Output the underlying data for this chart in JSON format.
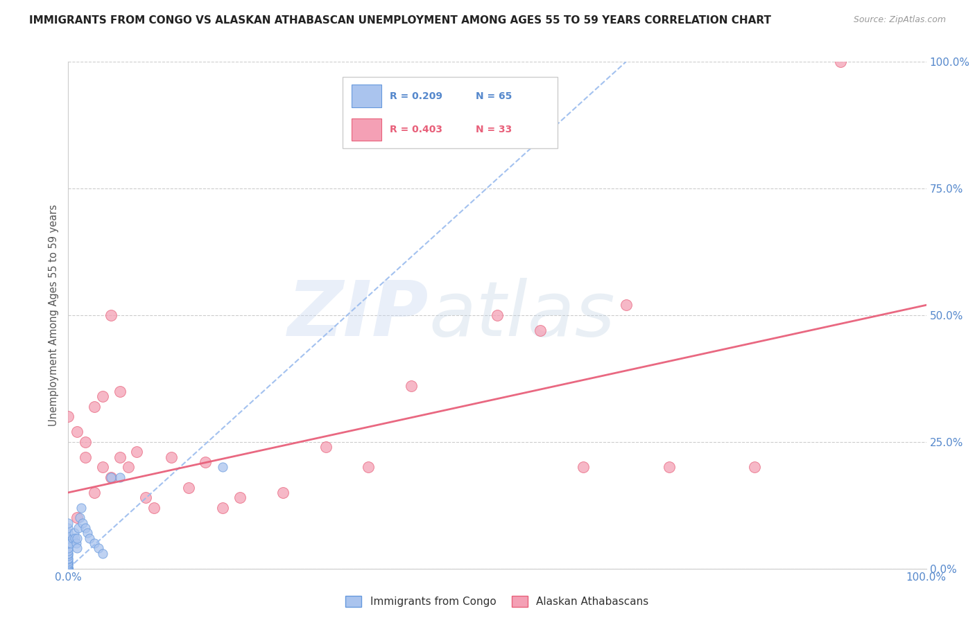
{
  "title": "IMMIGRANTS FROM CONGO VS ALASKAN ATHABASCAN UNEMPLOYMENT AMONG AGES 55 TO 59 YEARS CORRELATION CHART",
  "source": "Source: ZipAtlas.com",
  "ylabel": "Unemployment Among Ages 55 to 59 years",
  "ytick_labels": [
    "0.0%",
    "25.0%",
    "50.0%",
    "75.0%",
    "100.0%"
  ],
  "ytick_values": [
    0.0,
    0.25,
    0.5,
    0.75,
    1.0
  ],
  "legend_label_blue": "Immigrants from Congo",
  "legend_label_pink": "Alaskan Athabascans",
  "blue_color": "#aac4ee",
  "pink_color": "#f4a0b5",
  "blue_edge_color": "#6699dd",
  "pink_edge_color": "#e8607a",
  "blue_trend_color": "#99bbee",
  "pink_trend_color": "#e8607a",
  "watermark_zip_color": "#c8d8f0",
  "watermark_atlas_color": "#c0d0e0",
  "grid_color": "#cccccc",
  "tick_color": "#5588cc",
  "ylabel_color": "#555555",
  "title_color": "#222222",
  "source_color": "#999999",
  "blue_scatter_x": [
    0.0,
    0.0,
    0.0,
    0.0,
    0.0,
    0.0,
    0.0,
    0.0,
    0.0,
    0.0,
    0.0,
    0.0,
    0.0,
    0.0,
    0.0,
    0.0,
    0.0,
    0.0,
    0.0,
    0.0,
    0.0,
    0.0,
    0.0,
    0.0,
    0.0,
    0.0,
    0.0,
    0.0,
    0.0,
    0.0,
    0.0,
    0.0,
    0.0,
    0.0,
    0.0,
    0.0,
    0.0,
    0.0,
    0.0,
    0.0,
    0.0,
    0.0,
    0.0,
    0.0,
    0.0,
    0.003,
    0.005,
    0.007,
    0.008,
    0.009,
    0.01,
    0.01,
    0.012,
    0.013,
    0.015,
    0.017,
    0.02,
    0.022,
    0.025,
    0.03,
    0.035,
    0.04,
    0.05,
    0.06,
    0.18
  ],
  "blue_scatter_y": [
    0.0,
    0.0,
    0.0,
    0.0,
    0.0,
    0.0,
    0.0,
    0.0,
    0.0,
    0.0,
    0.0,
    0.0,
    0.0,
    0.0,
    0.0,
    0.0,
    0.0,
    0.0,
    0.0,
    0.0,
    0.0,
    0.0,
    0.0,
    0.0,
    0.0,
    0.0,
    0.005,
    0.008,
    0.01,
    0.01,
    0.012,
    0.015,
    0.018,
    0.02,
    0.025,
    0.03,
    0.03,
    0.035,
    0.04,
    0.05,
    0.05,
    0.06,
    0.07,
    0.08,
    0.09,
    0.05,
    0.06,
    0.07,
    0.06,
    0.05,
    0.04,
    0.06,
    0.08,
    0.1,
    0.12,
    0.09,
    0.08,
    0.07,
    0.06,
    0.05,
    0.04,
    0.03,
    0.18,
    0.18,
    0.2
  ],
  "pink_scatter_x": [
    0.0,
    0.01,
    0.02,
    0.03,
    0.04,
    0.05,
    0.06,
    0.07,
    0.08,
    0.09,
    0.01,
    0.02,
    0.03,
    0.04,
    0.05,
    0.06,
    0.1,
    0.12,
    0.14,
    0.16,
    0.18,
    0.2,
    0.25,
    0.3,
    0.35,
    0.4,
    0.5,
    0.55,
    0.6,
    0.65,
    0.7,
    0.8,
    0.9
  ],
  "pink_scatter_y": [
    0.3,
    0.27,
    0.22,
    0.32,
    0.2,
    0.18,
    0.22,
    0.2,
    0.23,
    0.14,
    0.1,
    0.25,
    0.15,
    0.34,
    0.5,
    0.35,
    0.12,
    0.22,
    0.16,
    0.21,
    0.12,
    0.14,
    0.15,
    0.24,
    0.2,
    0.36,
    0.5,
    0.47,
    0.2,
    0.52,
    0.2,
    0.2,
    1.0
  ],
  "blue_trend_x0": 0.0,
  "blue_trend_y0": 0.0,
  "blue_trend_x1": 0.65,
  "blue_trend_y1": 1.0,
  "pink_trend_x0": 0.0,
  "pink_trend_y0": 0.15,
  "pink_trend_x1": 1.0,
  "pink_trend_y1": 0.52,
  "xlim": [
    0.0,
    1.0
  ],
  "ylim": [
    0.0,
    1.0
  ]
}
